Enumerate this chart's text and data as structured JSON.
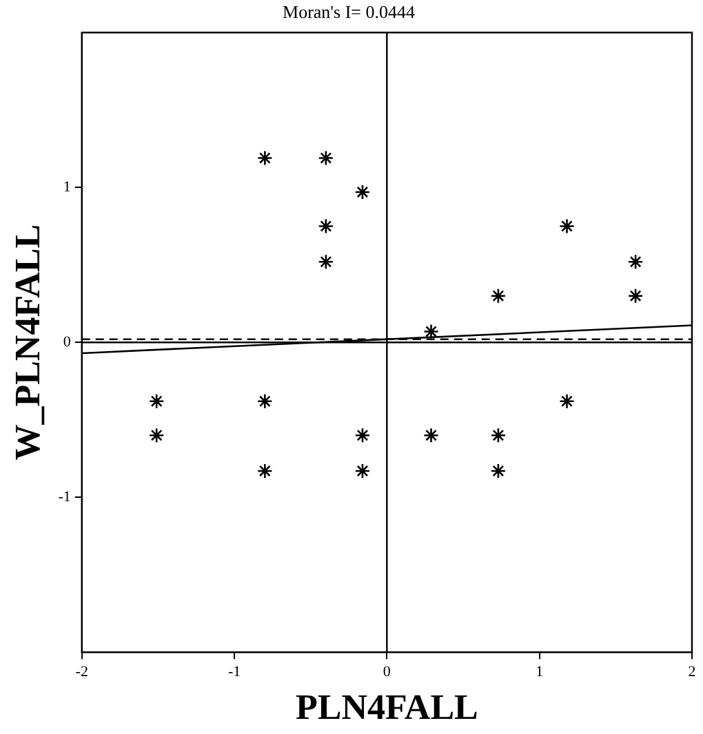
{
  "chart_data": {
    "type": "scatter",
    "title": "Moran's I= 0.0444",
    "xlabel": "PLN4FALL",
    "ylabel": "W_PLN4FALL",
    "series": [
      {
        "color": "#000000",
        "marker": "cross",
        "x": [
          -1.51,
          -1.51,
          -0.8,
          -0.8,
          -0.8,
          -0.4,
          -0.4,
          -0.4,
          -0.16,
          -0.16,
          -0.16,
          0.29,
          0.29,
          0.73,
          0.73,
          0.73,
          1.18,
          1.18,
          1.63,
          1.63
        ],
        "values": [
          -0.38,
          -0.6,
          1.19,
          -0.38,
          -0.83,
          1.19,
          0.75,
          0.52,
          0.97,
          -0.6,
          -0.83,
          0.07,
          -0.6,
          0.3,
          -0.6,
          -0.83,
          0.75,
          -0.38,
          0.52,
          0.3
        ]
      },
      {
        "type": "line",
        "color": "#000000",
        "marker": "none",
        "line_style": "solid",
        "x": [
          -2,
          2
        ],
        "values": [
          -0.07,
          0.11
        ]
      }
    ],
    "xlim": [
      -2,
      2
    ],
    "xticks": [
      -2,
      -1,
      0,
      1,
      2
    ],
    "ylim": [
      -2,
      2
    ],
    "yticks": [
      -1,
      0,
      1
    ],
    "ref_lines": [
      {
        "axis": "x",
        "value": 0,
        "color": "#000000",
        "line_style": "solid"
      },
      {
        "axis": "y",
        "value": 0,
        "color": "#000000",
        "line_style": "solid"
      },
      {
        "axis": "y",
        "value": 0.02,
        "color": "#000000",
        "line_style": "dashed"
      }
    ],
    "grid": false,
    "legend": false
  }
}
